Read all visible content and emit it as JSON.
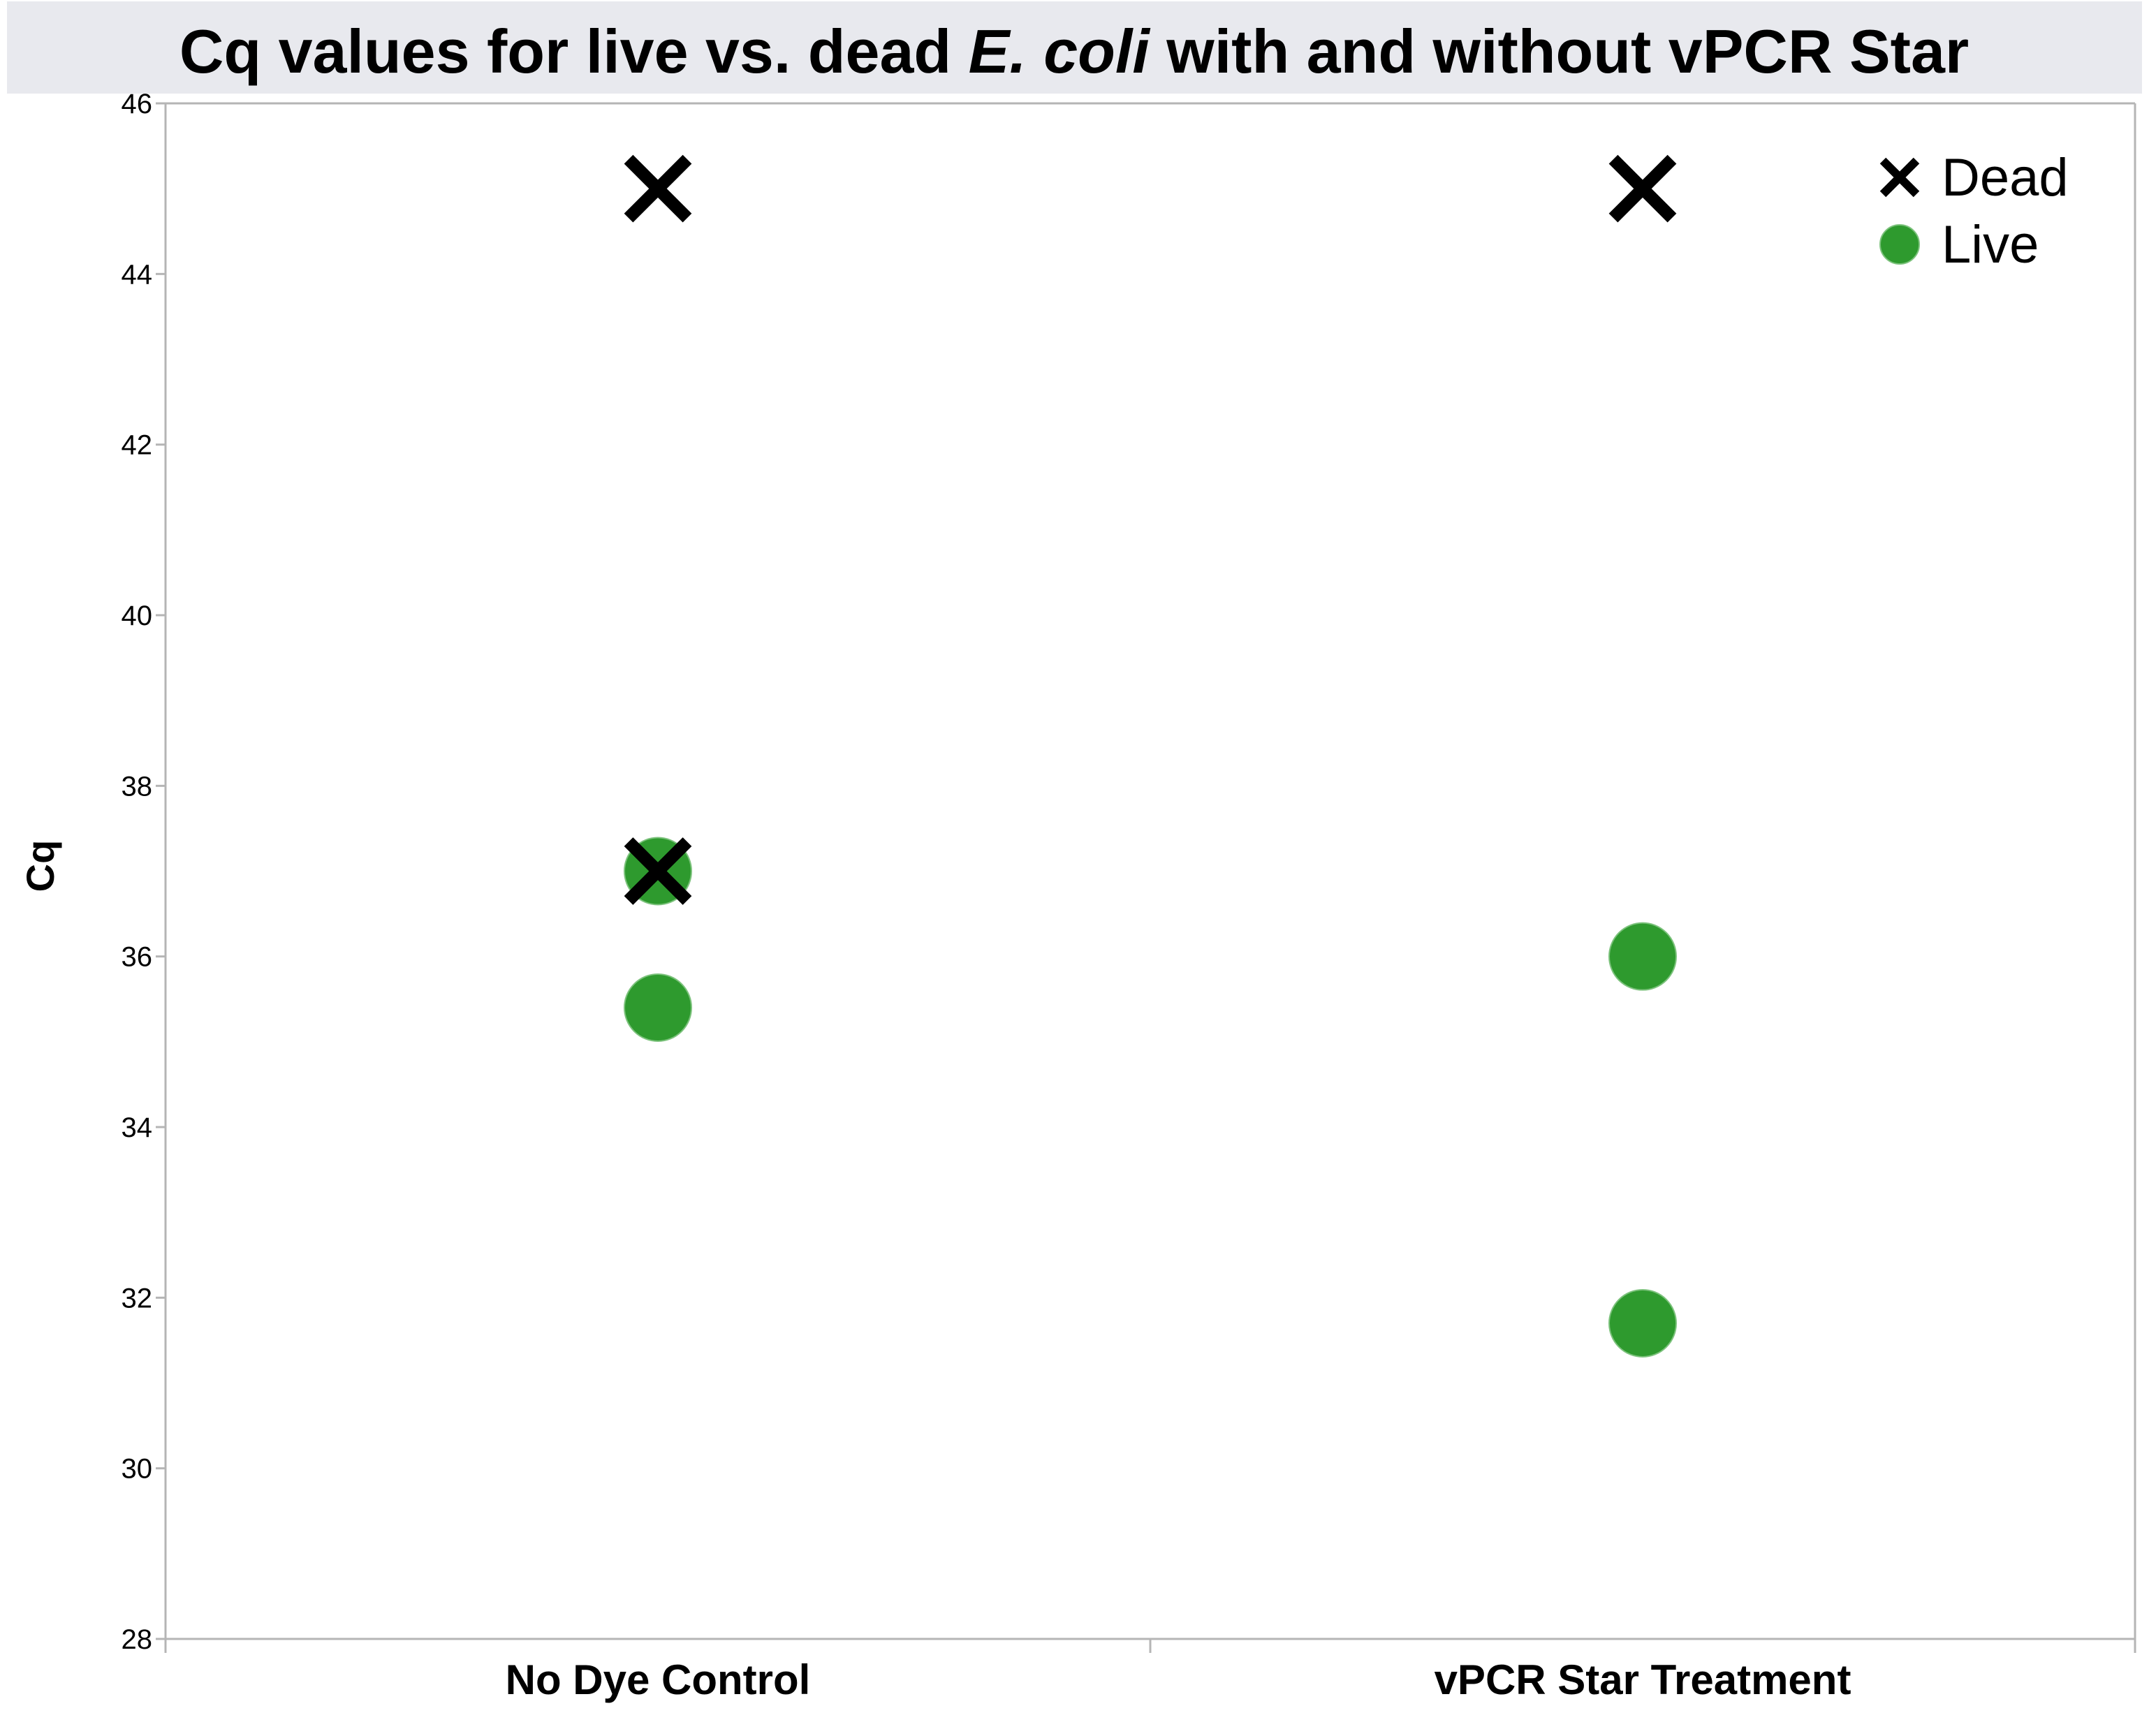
{
  "chart_data": {
    "type": "scatter",
    "title": {
      "part1": "Cq values for live vs. dead ",
      "italic": "E. coli",
      "part2": " with and without vPCR Star"
    },
    "xlabel": "",
    "ylabel": "Cq",
    "categories": [
      "No Dye Control",
      "vPCR Star Treatment"
    ],
    "ylim": [
      28,
      46
    ],
    "yticks": [
      28,
      30,
      32,
      34,
      36,
      38,
      40,
      42,
      44,
      46
    ],
    "grid": false,
    "legend_position": "top-right",
    "series": [
      {
        "name": "Live",
        "marker": "circle",
        "color": "#2e9a2e",
        "points": [
          {
            "category": "No Dye Control",
            "y": 37.0
          },
          {
            "category": "No Dye Control",
            "y": 35.4
          },
          {
            "category": "vPCR Star Treatment",
            "y": 36.0
          },
          {
            "category": "vPCR Star Treatment",
            "y": 31.7
          }
        ]
      },
      {
        "name": "Dead",
        "marker": "x",
        "color": "#000000",
        "points": [
          {
            "category": "No Dye Control",
            "y": 45.0
          },
          {
            "category": "No Dye Control",
            "y": 37.0
          },
          {
            "category": "vPCR Star Treatment",
            "y": 45.0
          }
        ]
      }
    ],
    "colors": {
      "title_background": "#e8e9ee",
      "axis": "#b5b5b5"
    }
  }
}
